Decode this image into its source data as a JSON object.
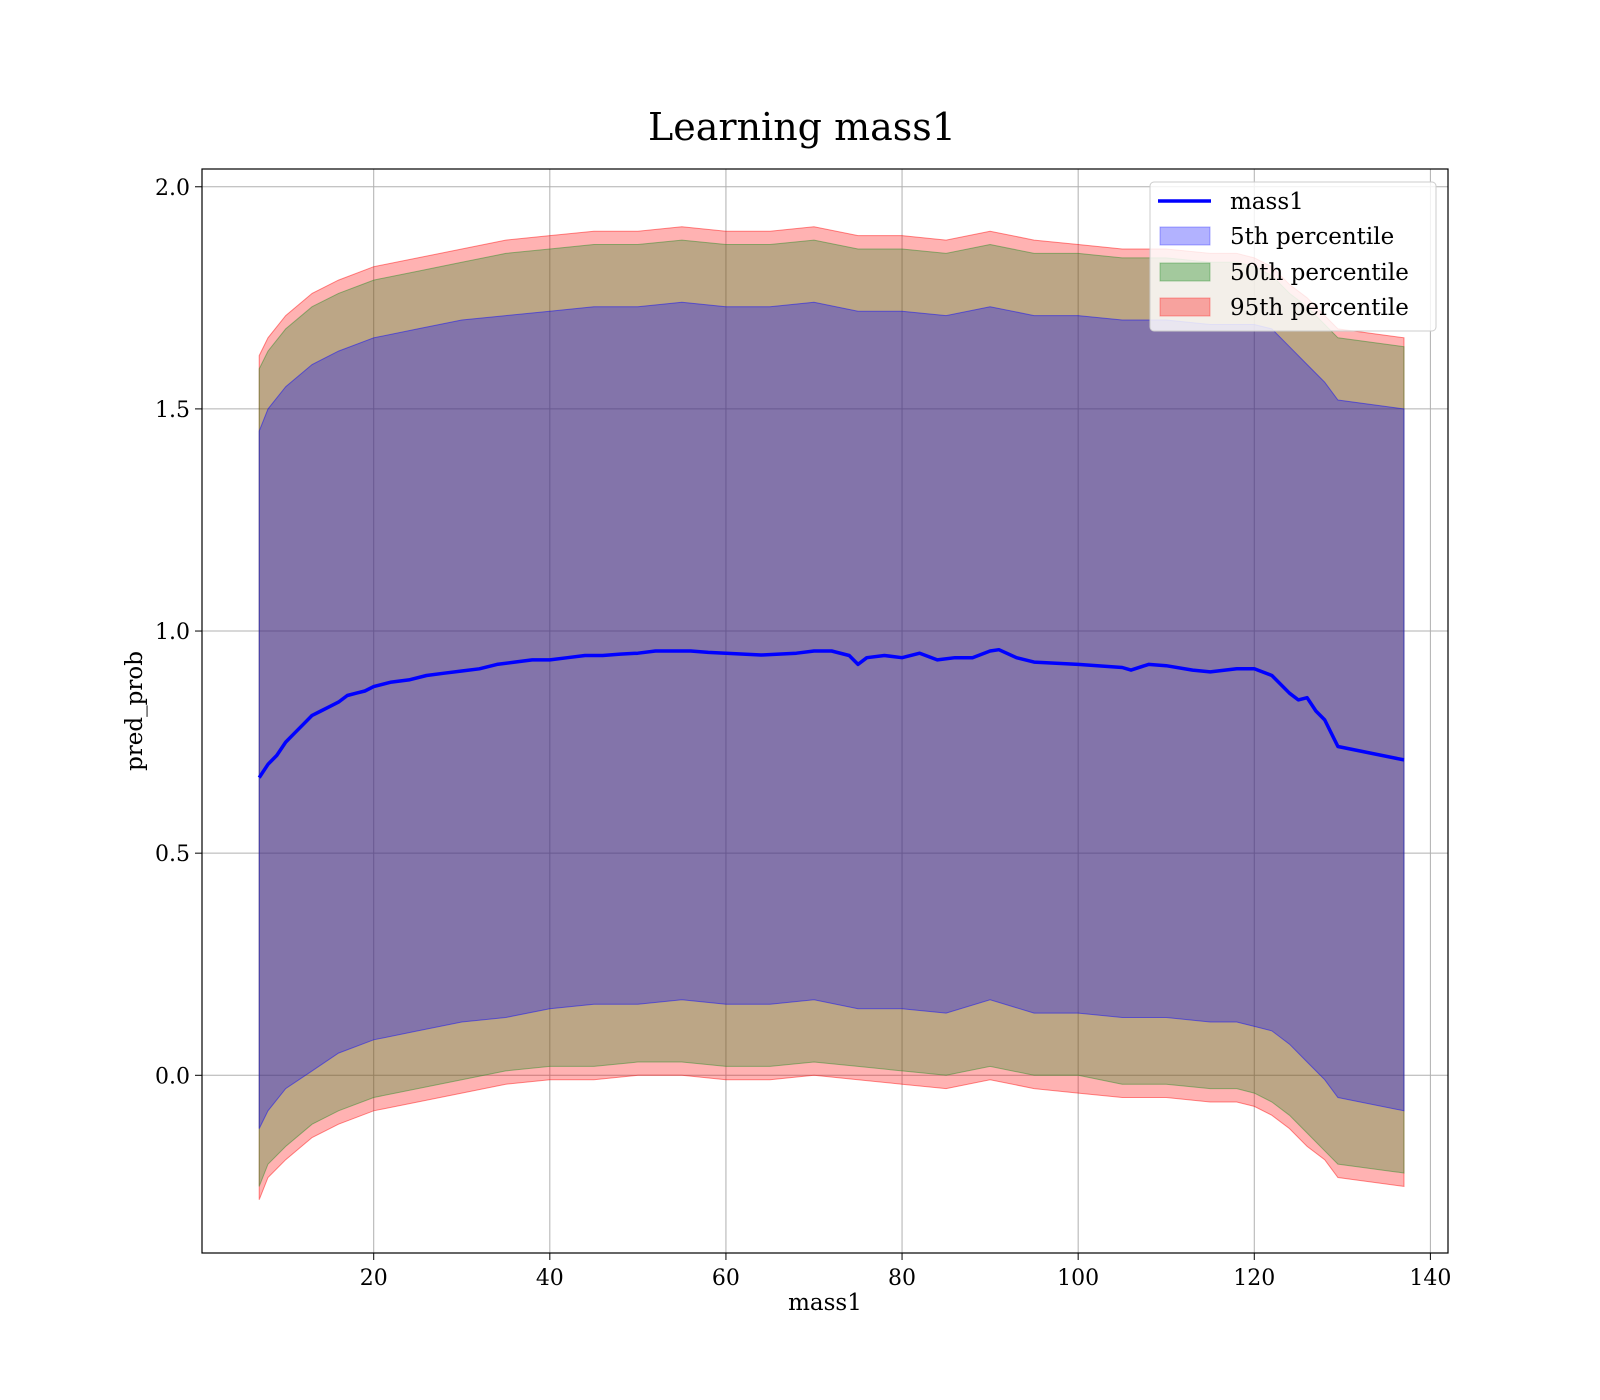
{
  "chart_data": {
    "type": "area",
    "title": "Learning mass1",
    "xlabel": "mass1",
    "ylabel": "pred_prob",
    "xlim": [
      0.5,
      142
    ],
    "ylim": [
      -0.4,
      2.04
    ],
    "xticks": [
      20,
      40,
      60,
      80,
      100,
      120,
      140
    ],
    "yticks": [
      0.0,
      0.5,
      1.0,
      1.5,
      2.0
    ],
    "xtick_labels": [
      "20",
      "40",
      "60",
      "80",
      "100",
      "120",
      "140"
    ],
    "ytick_labels": [
      "0.0",
      "0.5",
      "1.0",
      "1.5",
      "2.0"
    ],
    "grid": true,
    "legend_position": "top-right",
    "colors": {
      "line": "#0000ff",
      "band_5": "#0000ff",
      "band_50": "#228b22",
      "band_95": "#ff0000"
    },
    "line": {
      "name": "mass1",
      "x": [
        7,
        8,
        9,
        10,
        11,
        12,
        13,
        14,
        15,
        16,
        17,
        18,
        19,
        20,
        22,
        24,
        26,
        28,
        30,
        32,
        34,
        36,
        38,
        40,
        42,
        44,
        46,
        48,
        50,
        52,
        54,
        56,
        58,
        60,
        62,
        64,
        66,
        68,
        70,
        72,
        74,
        75,
        76,
        78,
        80,
        82,
        84,
        86,
        88,
        90,
        91,
        93,
        95,
        100,
        105,
        106,
        108,
        110,
        113,
        115,
        118,
        120,
        122,
        124,
        125,
        126,
        127,
        128,
        129.5,
        137
      ],
      "y": [
        0.67,
        0.7,
        0.72,
        0.75,
        0.77,
        0.79,
        0.81,
        0.82,
        0.83,
        0.84,
        0.855,
        0.86,
        0.865,
        0.875,
        0.885,
        0.89,
        0.9,
        0.905,
        0.91,
        0.915,
        0.925,
        0.93,
        0.935,
        0.935,
        0.94,
        0.945,
        0.945,
        0.948,
        0.95,
        0.955,
        0.955,
        0.955,
        0.952,
        0.95,
        0.948,
        0.946,
        0.948,
        0.95,
        0.955,
        0.955,
        0.945,
        0.925,
        0.94,
        0.945,
        0.94,
        0.95,
        0.935,
        0.94,
        0.94,
        0.955,
        0.958,
        0.94,
        0.93,
        0.925,
        0.918,
        0.912,
        0.925,
        0.922,
        0.912,
        0.908,
        0.915,
        0.915,
        0.9,
        0.86,
        0.845,
        0.85,
        0.82,
        0.8,
        0.74,
        0.71
      ]
    },
    "bands": [
      {
        "name": "5th percentile",
        "x": [
          7,
          8,
          10,
          13,
          16,
          20,
          25,
          30,
          35,
          40,
          45,
          50,
          55,
          60,
          65,
          70,
          75,
          80,
          85,
          90,
          95,
          100,
          105,
          110,
          115,
          118,
          120,
          122,
          124,
          126,
          128,
          129.5,
          137
        ],
        "upper": [
          1.45,
          1.5,
          1.55,
          1.6,
          1.63,
          1.66,
          1.68,
          1.7,
          1.71,
          1.72,
          1.73,
          1.73,
          1.74,
          1.73,
          1.73,
          1.74,
          1.72,
          1.72,
          1.71,
          1.73,
          1.71,
          1.71,
          1.7,
          1.7,
          1.69,
          1.69,
          1.69,
          1.68,
          1.64,
          1.6,
          1.56,
          1.52,
          1.5
        ],
        "lower": [
          -0.12,
          -0.08,
          -0.03,
          0.01,
          0.05,
          0.08,
          0.1,
          0.12,
          0.13,
          0.15,
          0.16,
          0.16,
          0.17,
          0.16,
          0.16,
          0.17,
          0.15,
          0.15,
          0.14,
          0.17,
          0.14,
          0.14,
          0.13,
          0.13,
          0.12,
          0.12,
          0.11,
          0.1,
          0.07,
          0.03,
          -0.01,
          -0.05,
          -0.08
        ]
      },
      {
        "name": "50th percentile",
        "x": [
          7,
          8,
          10,
          13,
          16,
          20,
          25,
          30,
          35,
          40,
          45,
          50,
          55,
          60,
          65,
          70,
          75,
          80,
          85,
          90,
          95,
          100,
          105,
          110,
          115,
          118,
          120,
          122,
          124,
          126,
          128,
          129.5,
          137
        ],
        "upper": [
          1.59,
          1.63,
          1.68,
          1.73,
          1.76,
          1.79,
          1.81,
          1.83,
          1.85,
          1.86,
          1.87,
          1.87,
          1.88,
          1.87,
          1.87,
          1.88,
          1.86,
          1.86,
          1.85,
          1.87,
          1.85,
          1.85,
          1.84,
          1.84,
          1.83,
          1.83,
          1.82,
          1.8,
          1.76,
          1.73,
          1.69,
          1.66,
          1.64
        ],
        "lower": [
          -0.25,
          -0.2,
          -0.16,
          -0.11,
          -0.08,
          -0.05,
          -0.03,
          -0.01,
          0.01,
          0.02,
          0.02,
          0.03,
          0.03,
          0.02,
          0.02,
          0.03,
          0.02,
          0.01,
          0.0,
          0.02,
          0.0,
          0.0,
          -0.02,
          -0.02,
          -0.03,
          -0.03,
          -0.04,
          -0.06,
          -0.09,
          -0.13,
          -0.17,
          -0.2,
          -0.22
        ]
      },
      {
        "name": "95th percentile",
        "x": [
          7,
          8,
          10,
          13,
          16,
          20,
          25,
          30,
          35,
          40,
          45,
          50,
          55,
          60,
          65,
          70,
          75,
          80,
          85,
          90,
          95,
          100,
          105,
          110,
          115,
          118,
          120,
          122,
          124,
          126,
          128,
          129.5,
          137
        ],
        "upper": [
          1.62,
          1.66,
          1.71,
          1.76,
          1.79,
          1.82,
          1.84,
          1.86,
          1.88,
          1.89,
          1.9,
          1.9,
          1.91,
          1.9,
          1.9,
          1.91,
          1.89,
          1.89,
          1.88,
          1.9,
          1.88,
          1.87,
          1.86,
          1.86,
          1.85,
          1.85,
          1.84,
          1.82,
          1.78,
          1.75,
          1.71,
          1.68,
          1.66
        ],
        "lower": [
          -0.28,
          -0.23,
          -0.19,
          -0.14,
          -0.11,
          -0.08,
          -0.06,
          -0.04,
          -0.02,
          -0.01,
          -0.01,
          0.0,
          0.0,
          -0.01,
          -0.01,
          0.0,
          -0.01,
          -0.02,
          -0.03,
          -0.01,
          -0.03,
          -0.04,
          -0.05,
          -0.05,
          -0.06,
          -0.06,
          -0.07,
          -0.09,
          -0.12,
          -0.16,
          -0.19,
          -0.23,
          -0.25
        ]
      }
    ],
    "legend": [
      "mass1",
      "5th percentile",
      "50th percentile",
      "95th percentile"
    ]
  }
}
